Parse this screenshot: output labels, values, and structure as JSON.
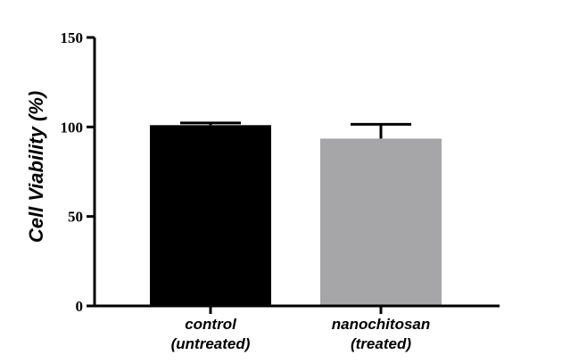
{
  "chart_data": {
    "type": "bar",
    "title": "",
    "xlabel": "",
    "ylabel": "Cell Viability (%)",
    "ylim": [
      0,
      150
    ],
    "yticks": [
      0,
      50,
      100,
      150
    ],
    "categories": [
      [
        "control",
        "(untreated)"
      ],
      [
        "nanochitosan",
        "(treated)"
      ]
    ],
    "values": [
      101,
      93.5
    ],
    "errors": [
      1.2,
      8
    ],
    "colors": [
      "#000000",
      "#a6a6a8"
    ],
    "grid": false,
    "legend": "none"
  }
}
